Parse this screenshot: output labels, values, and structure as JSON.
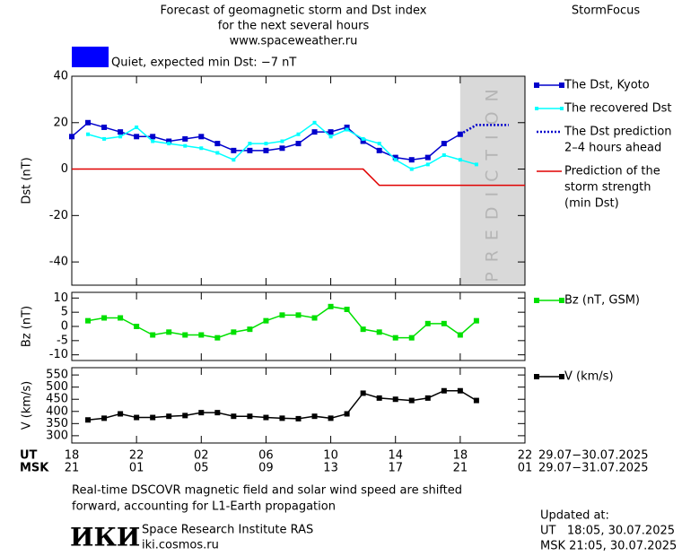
{
  "header": {
    "title_lines": [
      "Forecast of geomagnetic storm and Dst index",
      "for the next several hours",
      "www.spaceweather.ru"
    ],
    "brand": "StormFocus",
    "status": "Quiet, expected min Dst: −7 nT",
    "status_color": "#0000ff"
  },
  "chart_data": [
    {
      "type": "line",
      "ylabel": "Dst (nT)",
      "xlim": [
        0,
        28
      ],
      "xticks": [
        0,
        4,
        8,
        12,
        16,
        20,
        24,
        28
      ],
      "ylim": [
        -50,
        40
      ],
      "yticks": [
        -40,
        -20,
        0,
        20,
        40
      ],
      "prediction": {
        "label": "PREDICTION",
        "xlim": [
          24,
          28
        ],
        "color": "#d9d9d9"
      },
      "series": [
        {
          "name": [
            "The Dst, Kyoto"
          ],
          "color": "#0000cc",
          "marker": "square",
          "x": [
            0,
            1,
            2,
            3,
            4,
            5,
            6,
            7,
            8,
            9,
            10,
            11,
            12,
            13,
            14,
            15,
            16,
            17,
            18,
            19,
            20,
            21,
            22,
            23,
            24
          ],
          "values": [
            14,
            20,
            18,
            16,
            14,
            14,
            12,
            13,
            14,
            11,
            8,
            8,
            8,
            9,
            11,
            16,
            16,
            18,
            12,
            8,
            5,
            4,
            5,
            11,
            15
          ]
        },
        {
          "name": [
            "The recovered Dst"
          ],
          "color": "#00ffff",
          "marker": "small-square",
          "x": [
            1,
            2,
            3,
            4,
            5,
            6,
            7,
            8,
            9,
            10,
            11,
            12,
            13,
            14,
            15,
            16,
            17,
            18,
            19,
            20,
            21,
            22,
            23,
            24,
            25
          ],
          "values": [
            15,
            13,
            14,
            18,
            12,
            11,
            10,
            9,
            7,
            4,
            11,
            11,
            12,
            15,
            20,
            14,
            17,
            13,
            11,
            4,
            0,
            2,
            6,
            4,
            2
          ]
        },
        {
          "name": [
            "The Dst prediction",
            "2–4 hours ahead"
          ],
          "color": "#0000cc",
          "style": "dotted",
          "x": [
            24,
            25,
            27
          ],
          "values": [
            15,
            19,
            19
          ]
        },
        {
          "name": [
            "Prediction of the",
            "storm strength",
            "(min Dst)"
          ],
          "color": "#e00000",
          "x": [
            0,
            18,
            19,
            28
          ],
          "values": [
            0,
            0,
            -7,
            -7
          ]
        }
      ]
    },
    {
      "type": "line",
      "ylabel": "Bz (nT)",
      "xlim": [
        0,
        28
      ],
      "xticks": [
        0,
        4,
        8,
        12,
        16,
        20,
        24,
        28
      ],
      "ylim": [
        -12,
        12
      ],
      "yticks": [
        -10,
        -5,
        0,
        5,
        10
      ],
      "series": [
        {
          "name": [
            "Bz (nT, GSM)"
          ],
          "color": "#00e000",
          "marker": "square",
          "x": [
            1,
            2,
            3,
            4,
            5,
            6,
            7,
            8,
            9,
            10,
            11,
            12,
            13,
            14,
            15,
            16,
            17,
            18,
            19,
            20,
            21,
            22,
            23,
            24,
            25
          ],
          "values": [
            2,
            3,
            3,
            0,
            -3,
            -2,
            -3,
            -3,
            -4,
            -2,
            -1,
            2,
            4,
            4,
            3,
            7,
            6,
            -1,
            -2,
            -4,
            -4,
            1,
            1,
            -3,
            2
          ]
        }
      ]
    },
    {
      "type": "line",
      "ylabel": "V (km/s)",
      "xlim": [
        0,
        28
      ],
      "xticks": [
        {
          "value": 0,
          "label": "18"
        },
        {
          "value": 4,
          "label": "22"
        },
        {
          "value": 8,
          "label": "02"
        },
        {
          "value": 12,
          "label": "06"
        },
        {
          "value": 16,
          "label": "10"
        },
        {
          "value": 20,
          "label": "14"
        },
        {
          "value": 24,
          "label": "18"
        },
        {
          "value": 28,
          "label": "22"
        }
      ],
      "xticks_msk": [
        {
          "value": 0,
          "label": "21"
        },
        {
          "value": 4,
          "label": "01"
        },
        {
          "value": 8,
          "label": "05"
        },
        {
          "value": 12,
          "label": "09"
        },
        {
          "value": 16,
          "label": "13"
        },
        {
          "value": 20,
          "label": "17"
        },
        {
          "value": 24,
          "label": "21"
        },
        {
          "value": 28,
          "label": "01"
        }
      ],
      "xlabel_ut": "UT",
      "xlabel_msk": "MSK",
      "date_range_ut": "29.07−30.07.2025",
      "date_range_msk": "29.07−31.07.2025",
      "ylim": [
        270,
        580
      ],
      "yticks": [
        300,
        350,
        400,
        450,
        500,
        550
      ],
      "series": [
        {
          "name": [
            "V (km/s)"
          ],
          "color": "#000000",
          "marker": "square",
          "x": [
            1,
            2,
            3,
            4,
            5,
            6,
            7,
            8,
            9,
            10,
            11,
            12,
            13,
            14,
            15,
            16,
            17,
            18,
            19,
            20,
            21,
            22,
            23,
            24,
            25
          ],
          "values": [
            365,
            372,
            390,
            375,
            375,
            380,
            383,
            395,
            395,
            380,
            380,
            375,
            372,
            370,
            380,
            372,
            390,
            475,
            455,
            450,
            445,
            455,
            485,
            485,
            445
          ]
        }
      ]
    }
  ],
  "footer": {
    "note_lines": [
      "Real-time DSCOVR magnetic field and solar wind speed are shifted",
      "forward, accounting for L1-Earth propagation"
    ],
    "logo": "ИКИ",
    "institute": "Space Research Institute RAS",
    "site": "iki.cosmos.ru",
    "updated_title": "Updated at:",
    "updated_lines": [
      "UT   18:05, 30.07.2025",
      "MSK 21:05, 30.07.2025"
    ]
  }
}
